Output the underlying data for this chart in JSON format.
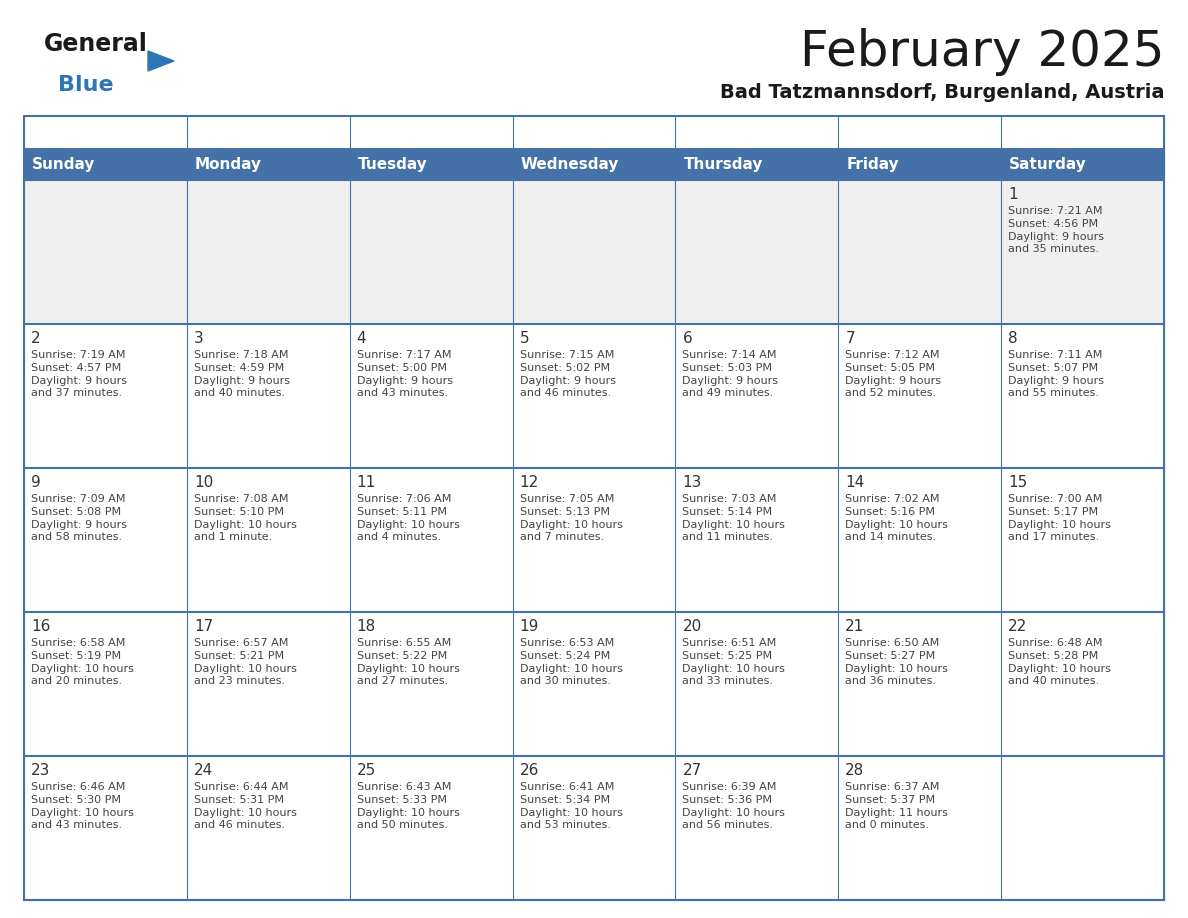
{
  "title": "February 2025",
  "subtitle": "Bad Tatzmannsdorf, Burgenland, Austria",
  "days_of_week": [
    "Sunday",
    "Monday",
    "Tuesday",
    "Wednesday",
    "Thursday",
    "Friday",
    "Saturday"
  ],
  "header_bg": "#4472A8",
  "header_text": "#FFFFFF",
  "cell_bg_white": "#FFFFFF",
  "cell_bg_gray": "#F0F0F0",
  "row_divider_color": "#4472A8",
  "border_color": "#4472A8",
  "day_num_color": "#333333",
  "info_color": "#444444",
  "title_color": "#1a1a1a",
  "subtitle_color": "#1a1a1a",
  "logo_general_color": "#1a1a1a",
  "logo_blue_color": "#2E75B6",
  "weeks": [
    [
      {
        "day": null,
        "info": ""
      },
      {
        "day": null,
        "info": ""
      },
      {
        "day": null,
        "info": ""
      },
      {
        "day": null,
        "info": ""
      },
      {
        "day": null,
        "info": ""
      },
      {
        "day": null,
        "info": ""
      },
      {
        "day": 1,
        "info": "Sunrise: 7:21 AM\nSunset: 4:56 PM\nDaylight: 9 hours\nand 35 minutes."
      }
    ],
    [
      {
        "day": 2,
        "info": "Sunrise: 7:19 AM\nSunset: 4:57 PM\nDaylight: 9 hours\nand 37 minutes."
      },
      {
        "day": 3,
        "info": "Sunrise: 7:18 AM\nSunset: 4:59 PM\nDaylight: 9 hours\nand 40 minutes."
      },
      {
        "day": 4,
        "info": "Sunrise: 7:17 AM\nSunset: 5:00 PM\nDaylight: 9 hours\nand 43 minutes."
      },
      {
        "day": 5,
        "info": "Sunrise: 7:15 AM\nSunset: 5:02 PM\nDaylight: 9 hours\nand 46 minutes."
      },
      {
        "day": 6,
        "info": "Sunrise: 7:14 AM\nSunset: 5:03 PM\nDaylight: 9 hours\nand 49 minutes."
      },
      {
        "day": 7,
        "info": "Sunrise: 7:12 AM\nSunset: 5:05 PM\nDaylight: 9 hours\nand 52 minutes."
      },
      {
        "day": 8,
        "info": "Sunrise: 7:11 AM\nSunset: 5:07 PM\nDaylight: 9 hours\nand 55 minutes."
      }
    ],
    [
      {
        "day": 9,
        "info": "Sunrise: 7:09 AM\nSunset: 5:08 PM\nDaylight: 9 hours\nand 58 minutes."
      },
      {
        "day": 10,
        "info": "Sunrise: 7:08 AM\nSunset: 5:10 PM\nDaylight: 10 hours\nand 1 minute."
      },
      {
        "day": 11,
        "info": "Sunrise: 7:06 AM\nSunset: 5:11 PM\nDaylight: 10 hours\nand 4 minutes."
      },
      {
        "day": 12,
        "info": "Sunrise: 7:05 AM\nSunset: 5:13 PM\nDaylight: 10 hours\nand 7 minutes."
      },
      {
        "day": 13,
        "info": "Sunrise: 7:03 AM\nSunset: 5:14 PM\nDaylight: 10 hours\nand 11 minutes."
      },
      {
        "day": 14,
        "info": "Sunrise: 7:02 AM\nSunset: 5:16 PM\nDaylight: 10 hours\nand 14 minutes."
      },
      {
        "day": 15,
        "info": "Sunrise: 7:00 AM\nSunset: 5:17 PM\nDaylight: 10 hours\nand 17 minutes."
      }
    ],
    [
      {
        "day": 16,
        "info": "Sunrise: 6:58 AM\nSunset: 5:19 PM\nDaylight: 10 hours\nand 20 minutes."
      },
      {
        "day": 17,
        "info": "Sunrise: 6:57 AM\nSunset: 5:21 PM\nDaylight: 10 hours\nand 23 minutes."
      },
      {
        "day": 18,
        "info": "Sunrise: 6:55 AM\nSunset: 5:22 PM\nDaylight: 10 hours\nand 27 minutes."
      },
      {
        "day": 19,
        "info": "Sunrise: 6:53 AM\nSunset: 5:24 PM\nDaylight: 10 hours\nand 30 minutes."
      },
      {
        "day": 20,
        "info": "Sunrise: 6:51 AM\nSunset: 5:25 PM\nDaylight: 10 hours\nand 33 minutes."
      },
      {
        "day": 21,
        "info": "Sunrise: 6:50 AM\nSunset: 5:27 PM\nDaylight: 10 hours\nand 36 minutes."
      },
      {
        "day": 22,
        "info": "Sunrise: 6:48 AM\nSunset: 5:28 PM\nDaylight: 10 hours\nand 40 minutes."
      }
    ],
    [
      {
        "day": 23,
        "info": "Sunrise: 6:46 AM\nSunset: 5:30 PM\nDaylight: 10 hours\nand 43 minutes."
      },
      {
        "day": 24,
        "info": "Sunrise: 6:44 AM\nSunset: 5:31 PM\nDaylight: 10 hours\nand 46 minutes."
      },
      {
        "day": 25,
        "info": "Sunrise: 6:43 AM\nSunset: 5:33 PM\nDaylight: 10 hours\nand 50 minutes."
      },
      {
        "day": 26,
        "info": "Sunrise: 6:41 AM\nSunset: 5:34 PM\nDaylight: 10 hours\nand 53 minutes."
      },
      {
        "day": 27,
        "info": "Sunrise: 6:39 AM\nSunset: 5:36 PM\nDaylight: 10 hours\nand 56 minutes."
      },
      {
        "day": 28,
        "info": "Sunrise: 6:37 AM\nSunset: 5:37 PM\nDaylight: 11 hours\nand 0 minutes."
      },
      {
        "day": null,
        "info": ""
      }
    ]
  ],
  "figsize": [
    11.88,
    9.18
  ],
  "dpi": 100
}
